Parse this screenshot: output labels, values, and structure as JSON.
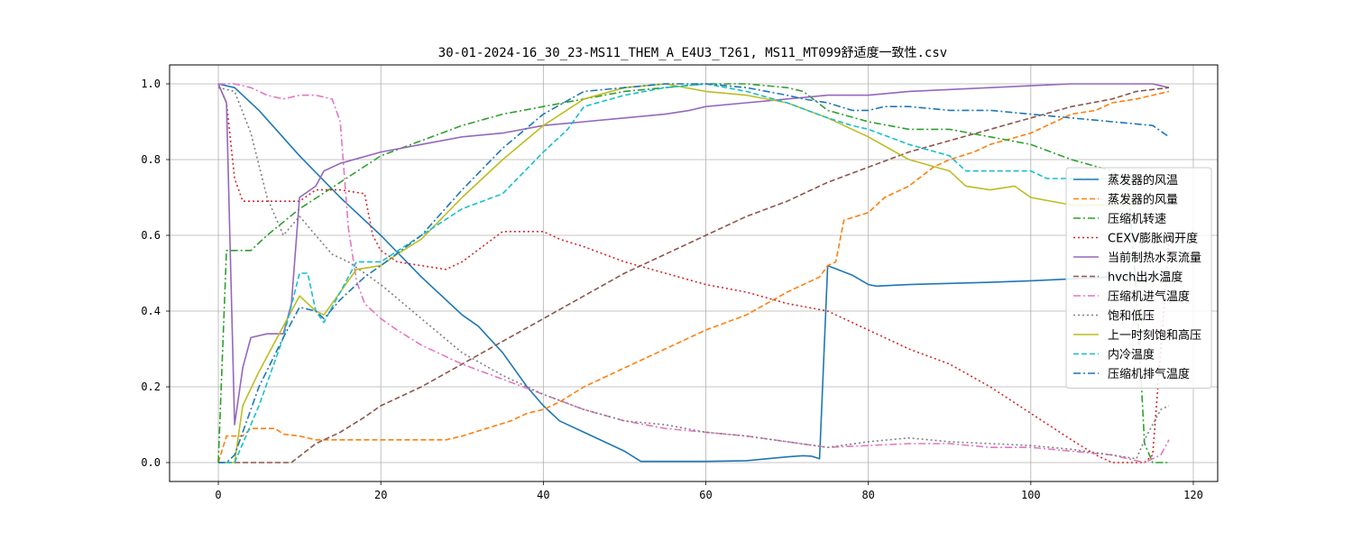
{
  "chart_data": {
    "type": "line",
    "title": "30-01-2024-16_30_23-MS11_THEM_A_E4U3_T261, MS11_MT099舒适度一致性.csv",
    "xlabel": "",
    "ylabel": "",
    "xlim": [
      -6,
      123
    ],
    "ylim": [
      -0.05,
      1.05
    ],
    "xticks": [
      0,
      20,
      40,
      60,
      80,
      100,
      120
    ],
    "yticks": [
      0.0,
      0.2,
      0.4,
      0.6,
      0.8,
      1.0
    ],
    "grid": true,
    "legend_position": "right",
    "series": [
      {
        "name": "蒸发器的风温",
        "color": "#1f77b4",
        "dash": "solid",
        "x": [
          0,
          2,
          5,
          10,
          15,
          20,
          25,
          30,
          32,
          35,
          38,
          40,
          42,
          45,
          50,
          52,
          55,
          60,
          65,
          70,
          72,
          73,
          74,
          75,
          78,
          80,
          81,
          85,
          90,
          95,
          100,
          105,
          110,
          117
        ],
        "y": [
          1.0,
          0.99,
          0.93,
          0.81,
          0.7,
          0.6,
          0.49,
          0.39,
          0.36,
          0.29,
          0.2,
          0.15,
          0.11,
          0.08,
          0.03,
          0.003,
          0.003,
          0.003,
          0.005,
          0.015,
          0.018,
          0.017,
          0.01,
          0.52,
          0.495,
          0.47,
          0.466,
          0.47,
          0.473,
          0.476,
          0.48,
          0.485,
          0.49,
          0.5
        ]
      },
      {
        "name": "蒸发器的风量",
        "color": "#ff7f0e",
        "dash": "dashed",
        "x": [
          0,
          1,
          3,
          4,
          7,
          8,
          10,
          12,
          15,
          20,
          25,
          28,
          30,
          33,
          36,
          38,
          40,
          42,
          45,
          50,
          55,
          60,
          65,
          70,
          73,
          74,
          75,
          76,
          77,
          80,
          82,
          85,
          88,
          90,
          93,
          95,
          100,
          102,
          105,
          108,
          110,
          113,
          117
        ],
        "y": [
          0.0,
          0.07,
          0.07,
          0.09,
          0.09,
          0.075,
          0.07,
          0.06,
          0.06,
          0.06,
          0.06,
          0.06,
          0.07,
          0.09,
          0.11,
          0.13,
          0.14,
          0.16,
          0.2,
          0.25,
          0.3,
          0.35,
          0.39,
          0.45,
          0.48,
          0.49,
          0.52,
          0.53,
          0.64,
          0.66,
          0.7,
          0.73,
          0.78,
          0.8,
          0.82,
          0.84,
          0.87,
          0.89,
          0.92,
          0.93,
          0.95,
          0.96,
          0.98
        ]
      },
      {
        "name": "压缩机转速",
        "color": "#2ca02c",
        "dash": "dashdot",
        "x": [
          0,
          1,
          2,
          4,
          6,
          10,
          15,
          20,
          25,
          30,
          35,
          40,
          45,
          50,
          55,
          60,
          65,
          70,
          72,
          75,
          80,
          85,
          90,
          95,
          100,
          105,
          110,
          112,
          113,
          114,
          115,
          116,
          117
        ],
        "y": [
          0.0,
          0.56,
          0.56,
          0.56,
          0.6,
          0.67,
          0.74,
          0.81,
          0.85,
          0.89,
          0.92,
          0.94,
          0.96,
          0.98,
          0.99,
          1.0,
          1.0,
          0.99,
          0.98,
          0.93,
          0.9,
          0.88,
          0.88,
          0.86,
          0.84,
          0.8,
          0.77,
          0.73,
          0.45,
          0.05,
          0.0,
          0.0,
          0.0
        ]
      },
      {
        "name": "CEXV膨胀阀开度",
        "color": "#d62728",
        "dash": "dotted",
        "x": [
          0,
          1,
          2,
          3,
          5,
          8,
          10,
          12,
          15,
          18,
          19,
          20,
          22,
          25,
          28,
          30,
          35,
          40,
          42,
          45,
          50,
          55,
          60,
          65,
          70,
          75,
          80,
          85,
          90,
          95,
          100,
          105,
          108,
          110,
          113,
          114,
          115,
          116,
          117
        ],
        "y": [
          1.0,
          0.95,
          0.75,
          0.69,
          0.69,
          0.69,
          0.69,
          0.72,
          0.72,
          0.71,
          0.6,
          0.56,
          0.53,
          0.52,
          0.51,
          0.53,
          0.61,
          0.61,
          0.59,
          0.57,
          0.53,
          0.5,
          0.47,
          0.45,
          0.42,
          0.4,
          0.35,
          0.3,
          0.26,
          0.2,
          0.13,
          0.06,
          0.02,
          0.0,
          0.0,
          0.0,
          0.02,
          0.3,
          0.58
        ]
      },
      {
        "name": "当前制热水泵流量",
        "color": "#9467bd",
        "dash": "solid",
        "x": [
          0,
          1,
          2,
          3,
          4,
          6,
          8,
          9,
          10,
          12,
          13,
          15,
          20,
          25,
          30,
          35,
          40,
          45,
          50,
          55,
          58,
          60,
          65,
          70,
          75,
          80,
          85,
          90,
          95,
          100,
          105,
          110,
          115,
          117
        ],
        "y": [
          1.0,
          0.95,
          0.1,
          0.25,
          0.33,
          0.34,
          0.34,
          0.42,
          0.7,
          0.73,
          0.77,
          0.79,
          0.82,
          0.84,
          0.86,
          0.87,
          0.89,
          0.9,
          0.91,
          0.92,
          0.93,
          0.94,
          0.95,
          0.96,
          0.97,
          0.97,
          0.98,
          0.985,
          0.99,
          0.995,
          1.0,
          1.0,
          1.0,
          0.99
        ]
      },
      {
        "name": "hvch出水温度",
        "color": "#8c564b",
        "dash": "dashed",
        "x": [
          0,
          5,
          9,
          12,
          15,
          18,
          20,
          25,
          30,
          35,
          40,
          45,
          50,
          55,
          60,
          65,
          70,
          75,
          80,
          85,
          90,
          95,
          100,
          105,
          110,
          113,
          117
        ],
        "y": [
          0.0,
          0.0,
          0.0,
          0.05,
          0.08,
          0.12,
          0.15,
          0.2,
          0.26,
          0.32,
          0.38,
          0.44,
          0.5,
          0.55,
          0.6,
          0.65,
          0.69,
          0.74,
          0.78,
          0.82,
          0.85,
          0.88,
          0.91,
          0.94,
          0.96,
          0.98,
          0.99
        ]
      },
      {
        "name": "压缩机进气温度",
        "color": "#e377c2",
        "dash": "dashdot",
        "x": [
          0,
          2,
          4,
          6,
          8,
          10,
          12,
          14,
          15,
          16,
          17,
          18,
          20,
          22,
          25,
          30,
          35,
          40,
          45,
          50,
          55,
          60,
          65,
          70,
          75,
          80,
          85,
          90,
          95,
          100,
          105,
          110,
          114,
          116,
          117
        ],
        "y": [
          1.0,
          1.0,
          0.99,
          0.97,
          0.96,
          0.97,
          0.97,
          0.96,
          0.9,
          0.62,
          0.48,
          0.42,
          0.38,
          0.35,
          0.31,
          0.26,
          0.22,
          0.18,
          0.14,
          0.11,
          0.09,
          0.08,
          0.07,
          0.055,
          0.04,
          0.045,
          0.05,
          0.05,
          0.04,
          0.04,
          0.03,
          0.02,
          0.0,
          0.02,
          0.06
        ]
      },
      {
        "name": "饱和低压",
        "color": "#7f7f7f",
        "dash": "dotted",
        "x": [
          0,
          2,
          4,
          6,
          8,
          10,
          12,
          14,
          16,
          18,
          20,
          25,
          30,
          35,
          40,
          45,
          50,
          55,
          60,
          65,
          70,
          75,
          80,
          85,
          90,
          95,
          100,
          105,
          110,
          113,
          114,
          115,
          116,
          117
        ],
        "y": [
          0.99,
          0.98,
          0.87,
          0.7,
          0.6,
          0.65,
          0.6,
          0.55,
          0.53,
          0.5,
          0.47,
          0.38,
          0.29,
          0.23,
          0.18,
          0.14,
          0.11,
          0.1,
          0.08,
          0.07,
          0.055,
          0.04,
          0.055,
          0.065,
          0.055,
          0.05,
          0.045,
          0.035,
          0.02,
          0.01,
          0.06,
          0.1,
          0.14,
          0.15
        ]
      },
      {
        "name": "上一时刻饱和高压",
        "color": "#bcbd22",
        "dash": "solid",
        "x": [
          0,
          2,
          3,
          5,
          8,
          10,
          12,
          13,
          15,
          17,
          20,
          22,
          25,
          30,
          35,
          40,
          45,
          50,
          55,
          60,
          65,
          70,
          75,
          80,
          85,
          90,
          92,
          95,
          98,
          100,
          105,
          110,
          113
        ],
        "y": [
          0.0,
          0.0,
          0.15,
          0.24,
          0.36,
          0.44,
          0.4,
          0.39,
          0.45,
          0.51,
          0.52,
          0.55,
          0.59,
          0.7,
          0.8,
          0.89,
          0.96,
          0.99,
          1.0,
          0.98,
          0.97,
          0.95,
          0.91,
          0.86,
          0.8,
          0.77,
          0.73,
          0.72,
          0.73,
          0.7,
          0.68,
          0.68,
          0.68
        ]
      },
      {
        "name": "内冷温度",
        "color": "#17becf",
        "dash": "dashed",
        "x": [
          0,
          2,
          3,
          5,
          8,
          10,
          11,
          12,
          13,
          15,
          17,
          20,
          25,
          30,
          35,
          40,
          43,
          45,
          50,
          55,
          60,
          65,
          70,
          75,
          78,
          80,
          85,
          90,
          92,
          95,
          100,
          102,
          105,
          110,
          113
        ],
        "y": [
          0.0,
          0.0,
          0.05,
          0.15,
          0.33,
          0.5,
          0.5,
          0.4,
          0.37,
          0.45,
          0.53,
          0.53,
          0.6,
          0.67,
          0.71,
          0.82,
          0.88,
          0.94,
          0.97,
          0.99,
          1.0,
          0.98,
          0.95,
          0.91,
          0.89,
          0.88,
          0.84,
          0.81,
          0.77,
          0.77,
          0.77,
          0.75,
          0.75,
          0.75,
          0.76
        ]
      },
      {
        "name": "压缩机排气温度",
        "color": "#1f77b4",
        "dash": "dashdot",
        "x": [
          0,
          1,
          2,
          3,
          5,
          8,
          10,
          12,
          13,
          15,
          18,
          20,
          25,
          30,
          35,
          40,
          45,
          50,
          55,
          60,
          65,
          70,
          72,
          75,
          78,
          80,
          82,
          85,
          90,
          95,
          100,
          105,
          110,
          115,
          117
        ],
        "y": [
          0.0,
          0.0,
          0.02,
          0.08,
          0.2,
          0.33,
          0.41,
          0.4,
          0.38,
          0.43,
          0.49,
          0.52,
          0.6,
          0.72,
          0.83,
          0.92,
          0.98,
          0.99,
          1.0,
          1.0,
          0.99,
          0.97,
          0.96,
          0.95,
          0.93,
          0.93,
          0.94,
          0.94,
          0.93,
          0.93,
          0.92,
          0.91,
          0.9,
          0.89,
          0.86
        ]
      }
    ]
  }
}
